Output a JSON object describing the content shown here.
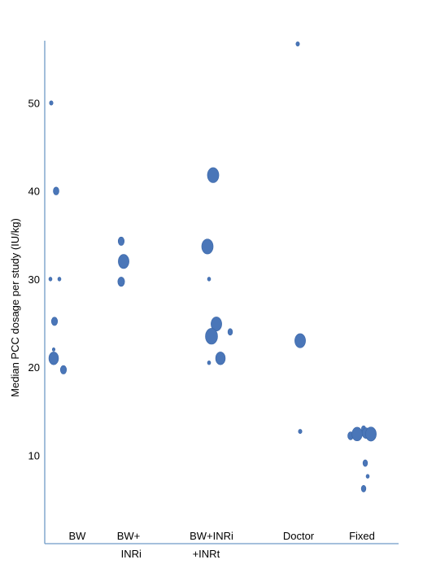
{
  "chart_data": {
    "type": "scatter",
    "title": "",
    "xlabel": "",
    "ylabel": "Median PCC dosage per study (IU/kg)",
    "categories": [
      "BW",
      "BW+\nINRi",
      "BW+INRi\n+INRt",
      "Doctor",
      "Fixed"
    ],
    "yticks": [
      10,
      20,
      30,
      40,
      50
    ],
    "ylim": [
      0,
      57
    ],
    "grid": false,
    "legend": "none",
    "marker_color": "#4a76b8",
    "marker_edge_color": "#3a66a8",
    "axis_color": "#6f9bc7",
    "points": [
      {
        "category": "BW",
        "offset": -0.12,
        "y": 50.0,
        "size": 1.0
      },
      {
        "category": "BW",
        "offset": 0.0,
        "y": 40.0,
        "size": 1.6
      },
      {
        "category": "BW",
        "offset": -0.08,
        "y": 30.0,
        "size": 0.9
      },
      {
        "category": "BW",
        "offset": 0.08,
        "y": 30.0,
        "size": 0.9
      },
      {
        "category": "BW",
        "offset": -0.05,
        "y": 25.2,
        "size": 1.7
      },
      {
        "category": "BW",
        "offset": -0.05,
        "y": 22.0,
        "size": 0.8
      },
      {
        "category": "BW",
        "offset": -0.05,
        "y": 21.0,
        "size": 2.7
      },
      {
        "category": "BW",
        "offset": 0.2,
        "y": 19.7,
        "size": 1.7
      },
      {
        "category": "BW+\nINRi",
        "offset": 0.0,
        "y": 34.3,
        "size": 1.7
      },
      {
        "category": "BW+\nINRi",
        "offset": 0.05,
        "y": 32.0,
        "size": 3.0
      },
      {
        "category": "BW+\nINRi",
        "offset": 0.0,
        "y": 29.7,
        "size": 1.9
      },
      {
        "category": "BW+INRi\n+INRt",
        "offset": 0.12,
        "y": 41.8,
        "size": 3.2
      },
      {
        "category": "BW+INRi\n+INRt",
        "offset": -0.02,
        "y": 33.7,
        "size": 3.2
      },
      {
        "category": "BW+INRi\n+INRt",
        "offset": 0.0,
        "y": 30.0,
        "size": 0.9
      },
      {
        "category": "BW+INRi\n+INRt",
        "offset": 0.16,
        "y": 24.9,
        "size": 3.0
      },
      {
        "category": "BW+INRi\n+INRt",
        "offset": 0.42,
        "y": 24.0,
        "size": 1.3
      },
      {
        "category": "BW+INRi\n+INRt",
        "offset": 0.06,
        "y": 23.5,
        "size": 3.4
      },
      {
        "category": "BW+INRi\n+INRt",
        "offset": 0.0,
        "y": 20.5,
        "size": 0.9
      },
      {
        "category": "BW+INRi\n+INRt",
        "offset": 0.2,
        "y": 21.0,
        "size": 2.7
      },
      {
        "category": "Doctor",
        "offset": 0.0,
        "y": 56.7,
        "size": 1.0
      },
      {
        "category": "Doctor",
        "offset": 0.05,
        "y": 23.0,
        "size": 3.0
      },
      {
        "category": "Doctor",
        "offset": 0.0,
        "y": 12.7,
        "size": 1.0
      },
      {
        "category": "Fixed",
        "offset": -0.28,
        "y": 12.2,
        "size": 1.6
      },
      {
        "category": "Fixed",
        "offset": -0.1,
        "y": 12.4,
        "size": 2.9
      },
      {
        "category": "Fixed",
        "offset": 0.0,
        "y": 13.0,
        "size": 1.2
      },
      {
        "category": "Fixed",
        "offset": 0.1,
        "y": 12.5,
        "size": 2.2
      },
      {
        "category": "Fixed",
        "offset": 0.22,
        "y": 12.4,
        "size": 3.0
      },
      {
        "category": "Fixed",
        "offset": -0.02,
        "y": 9.1,
        "size": 1.3
      },
      {
        "category": "Fixed",
        "offset": 0.06,
        "y": 7.6,
        "size": 0.9
      },
      {
        "category": "Fixed",
        "offset": -0.06,
        "y": 6.2,
        "size": 1.3
      }
    ]
  }
}
